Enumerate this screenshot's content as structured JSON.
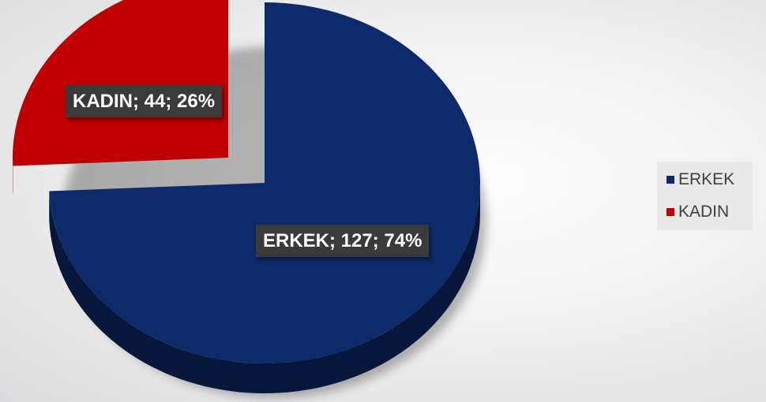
{
  "chart_data": {
    "type": "pie",
    "style": "3d-exploded",
    "slices": [
      {
        "label": "ERKEK",
        "value": 127,
        "percent": "74%",
        "color": "#0d2a6b",
        "data_label": "ERKEK; 127; 74%"
      },
      {
        "label": "KADIN",
        "value": 44,
        "percent": "26%",
        "color": "#c00000",
        "data_label": "KADIN; 44; 26%"
      }
    ],
    "legend_position": "right",
    "legend": [
      {
        "label": "ERKEK",
        "color": "#0d2a6b"
      },
      {
        "label": "KADIN",
        "color": "#c00000"
      }
    ]
  }
}
